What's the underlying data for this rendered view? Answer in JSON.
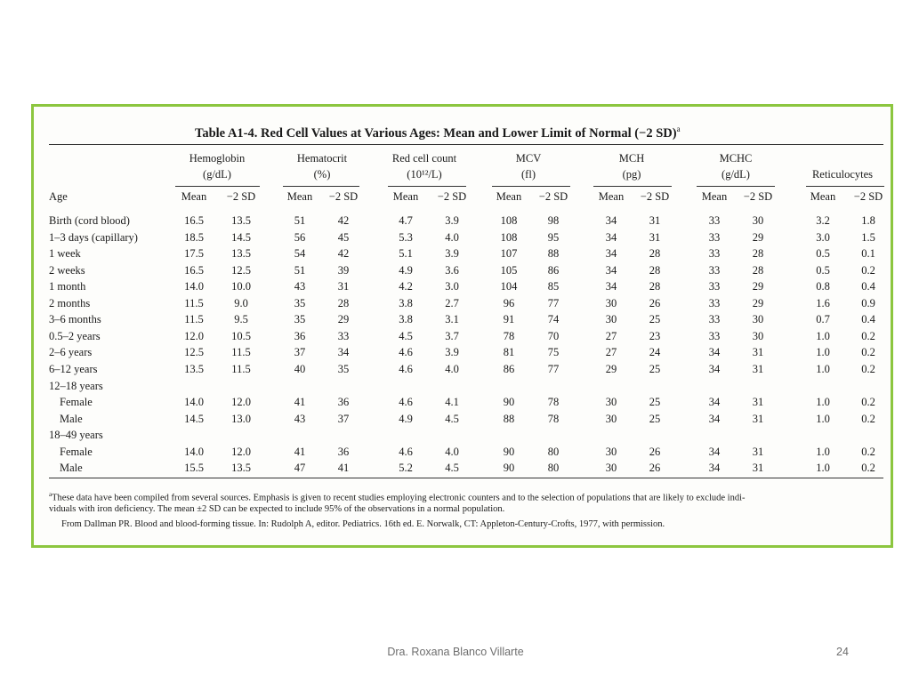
{
  "table": {
    "caption": "Table A1-4.  Red Cell Values at Various Ages: Mean and Lower Limit of Normal (−2 SD)",
    "caption_mark": "a",
    "age_header": "Age",
    "groups": [
      {
        "line1": "Hemoglobin",
        "line2": "(g/dL)"
      },
      {
        "line1": "Hematocrit",
        "line2": "(%)"
      },
      {
        "line1": "Red cell count",
        "line2": "(10¹²/L)"
      },
      {
        "line1": "MCV",
        "line2": "(fl)"
      },
      {
        "line1": "MCH",
        "line2": "(pg)"
      },
      {
        "line1": "MCHC",
        "line2": "(g/dL)"
      },
      {
        "line1": "",
        "line2": "Reticulocytes"
      }
    ],
    "sub_mean": "Mean",
    "sub_sd": "−2 SD",
    "rows": [
      {
        "label": "Birth (cord blood)",
        "indent": false,
        "values": [
          "16.5",
          "13.5",
          "51",
          "42",
          "4.7",
          "3.9",
          "108",
          "98",
          "34",
          "31",
          "33",
          "30",
          "3.2",
          "1.8"
        ]
      },
      {
        "label": "1–3 days (capillary)",
        "indent": false,
        "values": [
          "18.5",
          "14.5",
          "56",
          "45",
          "5.3",
          "4.0",
          "108",
          "95",
          "34",
          "31",
          "33",
          "29",
          "3.0",
          "1.5"
        ]
      },
      {
        "label": "1 week",
        "indent": false,
        "values": [
          "17.5",
          "13.5",
          "54",
          "42",
          "5.1",
          "3.9",
          "107",
          "88",
          "34",
          "28",
          "33",
          "28",
          "0.5",
          "0.1"
        ]
      },
      {
        "label": "2 weeks",
        "indent": false,
        "values": [
          "16.5",
          "12.5",
          "51",
          "39",
          "4.9",
          "3.6",
          "105",
          "86",
          "34",
          "28",
          "33",
          "28",
          "0.5",
          "0.2"
        ]
      },
      {
        "label": "1 month",
        "indent": false,
        "values": [
          "14.0",
          "10.0",
          "43",
          "31",
          "4.2",
          "3.0",
          "104",
          "85",
          "34",
          "28",
          "33",
          "29",
          "0.8",
          "0.4"
        ]
      },
      {
        "label": "2 months",
        "indent": false,
        "values": [
          "11.5",
          "9.0",
          "35",
          "28",
          "3.8",
          "2.7",
          "96",
          "77",
          "30",
          "26",
          "33",
          "29",
          "1.6",
          "0.9"
        ]
      },
      {
        "label": "3–6 months",
        "indent": false,
        "values": [
          "11.5",
          "9.5",
          "35",
          "29",
          "3.8",
          "3.1",
          "91",
          "74",
          "30",
          "25",
          "33",
          "30",
          "0.7",
          "0.4"
        ]
      },
      {
        "label": "0.5–2 years",
        "indent": false,
        "values": [
          "12.0",
          "10.5",
          "36",
          "33",
          "4.5",
          "3.7",
          "78",
          "70",
          "27",
          "23",
          "33",
          "30",
          "1.0",
          "0.2"
        ]
      },
      {
        "label": "2–6 years",
        "indent": false,
        "values": [
          "12.5",
          "11.5",
          "37",
          "34",
          "4.6",
          "3.9",
          "81",
          "75",
          "27",
          "24",
          "34",
          "31",
          "1.0",
          "0.2"
        ]
      },
      {
        "label": "6–12 years",
        "indent": false,
        "values": [
          "13.5",
          "11.5",
          "40",
          "35",
          "4.6",
          "4.0",
          "86",
          "77",
          "29",
          "25",
          "34",
          "31",
          "1.0",
          "0.2"
        ]
      },
      {
        "label": "12–18 years",
        "indent": false,
        "values": []
      },
      {
        "label": "Female",
        "indent": true,
        "values": [
          "14.0",
          "12.0",
          "41",
          "36",
          "4.6",
          "4.1",
          "90",
          "78",
          "30",
          "25",
          "34",
          "31",
          "1.0",
          "0.2"
        ]
      },
      {
        "label": "Male",
        "indent": true,
        "values": [
          "14.5",
          "13.0",
          "43",
          "37",
          "4.9",
          "4.5",
          "88",
          "78",
          "30",
          "25",
          "34",
          "31",
          "1.0",
          "0.2"
        ]
      },
      {
        "label": "18–49 years",
        "indent": false,
        "values": []
      },
      {
        "label": "Female",
        "indent": true,
        "values": [
          "14.0",
          "12.0",
          "41",
          "36",
          "4.6",
          "4.0",
          "90",
          "80",
          "30",
          "26",
          "34",
          "31",
          "1.0",
          "0.2"
        ]
      },
      {
        "label": "Male",
        "indent": true,
        "values": [
          "15.5",
          "13.5",
          "47",
          "41",
          "5.2",
          "4.5",
          "90",
          "80",
          "30",
          "26",
          "34",
          "31",
          "1.0",
          "0.2"
        ]
      }
    ],
    "footnote_mark": "a",
    "footnote_line1": "These data have been compiled from several sources. Emphasis is given to recent studies employing electronic counters and to the selection of populations that are likely to exclude indi-",
    "footnote_line2": "viduals with iron deficiency. The mean ±2 SD can be expected to include 95% of the observations in a normal population.",
    "source_line": "From Dallman PR. Blood and blood-forming tissue. In: Rudolph A, editor. Pediatrics. 16th ed. E. Norwalk, CT: Appleton-Century-Crofts, 1977, with permission."
  },
  "footer": {
    "author": "Dra. Roxana Blanco Villarte",
    "page": "24"
  },
  "colors": {
    "frame_border": "#8cc63f",
    "footer_text": "#6e6e6e"
  }
}
